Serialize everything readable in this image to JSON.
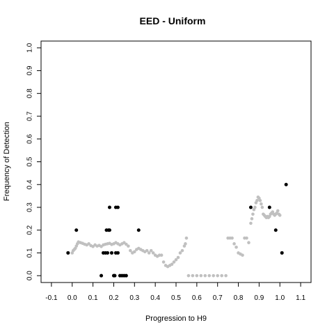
{
  "chart_data": {
    "type": "scatter",
    "title": "EED - Uniform",
    "xlabel": "Progression to H9",
    "ylabel": "Frequency of Detection",
    "xlim": [
      -0.15,
      1.15
    ],
    "ylim": [
      -0.03,
      1.03
    ],
    "x_ticks": [
      "-0.1",
      "0.0",
      "0.1",
      "0.2",
      "0.3",
      "0.4",
      "0.5",
      "0.6",
      "0.7",
      "0.8",
      "0.9",
      "1.0",
      "1.1"
    ],
    "y_ticks": [
      "0.0",
      "0.1",
      "0.2",
      "0.3",
      "0.4",
      "0.5",
      "0.6",
      "0.7",
      "0.8",
      "0.9",
      "1.0"
    ],
    "grid": false,
    "legend": "none",
    "series": [
      {
        "color": "#c0c0c0",
        "points": [
          [
            0.0,
            0.1
          ],
          [
            0.005,
            0.11
          ],
          [
            0.01,
            0.115
          ],
          [
            0.015,
            0.12
          ],
          [
            0.02,
            0.13
          ],
          [
            0.025,
            0.14
          ],
          [
            0.03,
            0.148
          ],
          [
            0.04,
            0.145
          ],
          [
            0.05,
            0.142
          ],
          [
            0.06,
            0.138
          ],
          [
            0.07,
            0.135
          ],
          [
            0.08,
            0.14
          ],
          [
            0.09,
            0.132
          ],
          [
            0.1,
            0.128
          ],
          [
            0.11,
            0.135
          ],
          [
            0.12,
            0.13
          ],
          [
            0.13,
            0.133
          ],
          [
            0.14,
            0.128
          ],
          [
            0.15,
            0.135
          ],
          [
            0.16,
            0.138
          ],
          [
            0.17,
            0.14
          ],
          [
            0.18,
            0.142
          ],
          [
            0.19,
            0.137
          ],
          [
            0.2,
            0.14
          ],
          [
            0.21,
            0.145
          ],
          [
            0.22,
            0.14
          ],
          [
            0.23,
            0.135
          ],
          [
            0.24,
            0.14
          ],
          [
            0.25,
            0.145
          ],
          [
            0.26,
            0.138
          ],
          [
            0.27,
            0.13
          ],
          [
            0.28,
            0.11
          ],
          [
            0.29,
            0.1
          ],
          [
            0.3,
            0.105
          ],
          [
            0.31,
            0.115
          ],
          [
            0.32,
            0.12
          ],
          [
            0.33,
            0.115
          ],
          [
            0.34,
            0.11
          ],
          [
            0.35,
            0.105
          ],
          [
            0.36,
            0.11
          ],
          [
            0.37,
            0.1
          ],
          [
            0.38,
            0.11
          ],
          [
            0.39,
            0.1
          ],
          [
            0.4,
            0.09
          ],
          [
            0.41,
            0.085
          ],
          [
            0.42,
            0.09
          ],
          [
            0.43,
            0.09
          ],
          [
            0.44,
            0.06
          ],
          [
            0.45,
            0.045
          ],
          [
            0.46,
            0.04
          ],
          [
            0.47,
            0.045
          ],
          [
            0.48,
            0.05
          ],
          [
            0.49,
            0.06
          ],
          [
            0.5,
            0.07
          ],
          [
            0.51,
            0.08
          ],
          [
            0.52,
            0.1
          ],
          [
            0.53,
            0.11
          ],
          [
            0.54,
            0.13
          ],
          [
            0.545,
            0.14
          ],
          [
            0.55,
            0.165
          ],
          [
            0.56,
            0.0
          ],
          [
            0.58,
            0.0
          ],
          [
            0.6,
            0.0
          ],
          [
            0.62,
            0.0
          ],
          [
            0.64,
            0.0
          ],
          [
            0.66,
            0.0
          ],
          [
            0.68,
            0.0
          ],
          [
            0.7,
            0.0
          ],
          [
            0.72,
            0.0
          ],
          [
            0.74,
            0.0
          ],
          [
            0.75,
            0.165
          ],
          [
            0.76,
            0.165
          ],
          [
            0.77,
            0.165
          ],
          [
            0.78,
            0.14
          ],
          [
            0.79,
            0.125
          ],
          [
            0.8,
            0.1
          ],
          [
            0.81,
            0.095
          ],
          [
            0.82,
            0.09
          ],
          [
            0.83,
            0.165
          ],
          [
            0.84,
            0.165
          ],
          [
            0.85,
            0.145
          ],
          [
            0.86,
            0.23
          ],
          [
            0.865,
            0.25
          ],
          [
            0.87,
            0.27
          ],
          [
            0.875,
            0.29
          ],
          [
            0.88,
            0.3
          ],
          [
            0.885,
            0.32
          ],
          [
            0.89,
            0.33
          ],
          [
            0.895,
            0.345
          ],
          [
            0.9,
            0.34
          ],
          [
            0.905,
            0.33
          ],
          [
            0.91,
            0.315
          ],
          [
            0.915,
            0.3
          ],
          [
            0.92,
            0.27
          ],
          [
            0.925,
            0.265
          ],
          [
            0.93,
            0.26
          ],
          [
            0.935,
            0.255
          ],
          [
            0.94,
            0.26
          ],
          [
            0.945,
            0.255
          ],
          [
            0.95,
            0.26
          ],
          [
            0.955,
            0.27
          ],
          [
            0.96,
            0.275
          ],
          [
            0.965,
            0.28
          ],
          [
            0.97,
            0.27
          ],
          [
            0.975,
            0.265
          ],
          [
            0.98,
            0.27
          ],
          [
            0.985,
            0.275
          ],
          [
            0.99,
            0.285
          ],
          [
            0.995,
            0.27
          ],
          [
            1.0,
            0.265
          ]
        ]
      },
      {
        "color": "#000000",
        "points": [
          [
            -0.02,
            0.1
          ],
          [
            0.02,
            0.2
          ],
          [
            0.14,
            0.0
          ],
          [
            0.15,
            0.1
          ],
          [
            0.16,
            0.1
          ],
          [
            0.165,
            0.2
          ],
          [
            0.17,
            0.1
          ],
          [
            0.175,
            0.2
          ],
          [
            0.18,
            0.3
          ],
          [
            0.18,
            0.2
          ],
          [
            0.19,
            0.1
          ],
          [
            0.2,
            0.0
          ],
          [
            0.205,
            0.0
          ],
          [
            0.21,
            0.1
          ],
          [
            0.21,
            0.3
          ],
          [
            0.22,
            0.3
          ],
          [
            0.22,
            0.1
          ],
          [
            0.23,
            0.0
          ],
          [
            0.24,
            0.0
          ],
          [
            0.25,
            0.0
          ],
          [
            0.26,
            0.0
          ],
          [
            0.32,
            0.2
          ],
          [
            0.86,
            0.3
          ],
          [
            0.95,
            0.3
          ],
          [
            0.98,
            0.2
          ],
          [
            1.01,
            0.1
          ],
          [
            1.03,
            0.4
          ]
        ]
      }
    ]
  }
}
